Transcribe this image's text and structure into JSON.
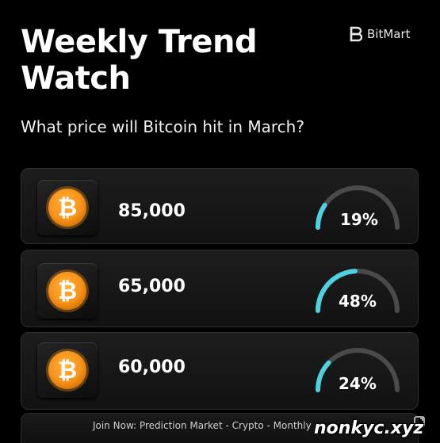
{
  "header": {
    "title_line1": "Weekly Trend",
    "title_line2": "Watch",
    "brand": "BitMart",
    "question": "What price will Bitcoin hit in March?"
  },
  "options": [
    {
      "price": "85,000",
      "percent_label": "19%",
      "percent": 19,
      "icon": "bitcoin-icon"
    },
    {
      "price": "65,000",
      "percent_label": "48%",
      "percent": 48,
      "icon": "bitcoin-icon"
    },
    {
      "price": "60,000",
      "percent_label": "24%",
      "percent": 24,
      "icon": "bitcoin-icon"
    }
  ],
  "footer": {
    "text": "Join Now: Prediction Market - Crypto - Monthly"
  },
  "watermark": "nonkyc.xyz",
  "colors": {
    "background": "#000000",
    "gauge_fill": "#4fd1e0",
    "gauge_track": "#4a4a4a",
    "coin": "#f7931a"
  }
}
